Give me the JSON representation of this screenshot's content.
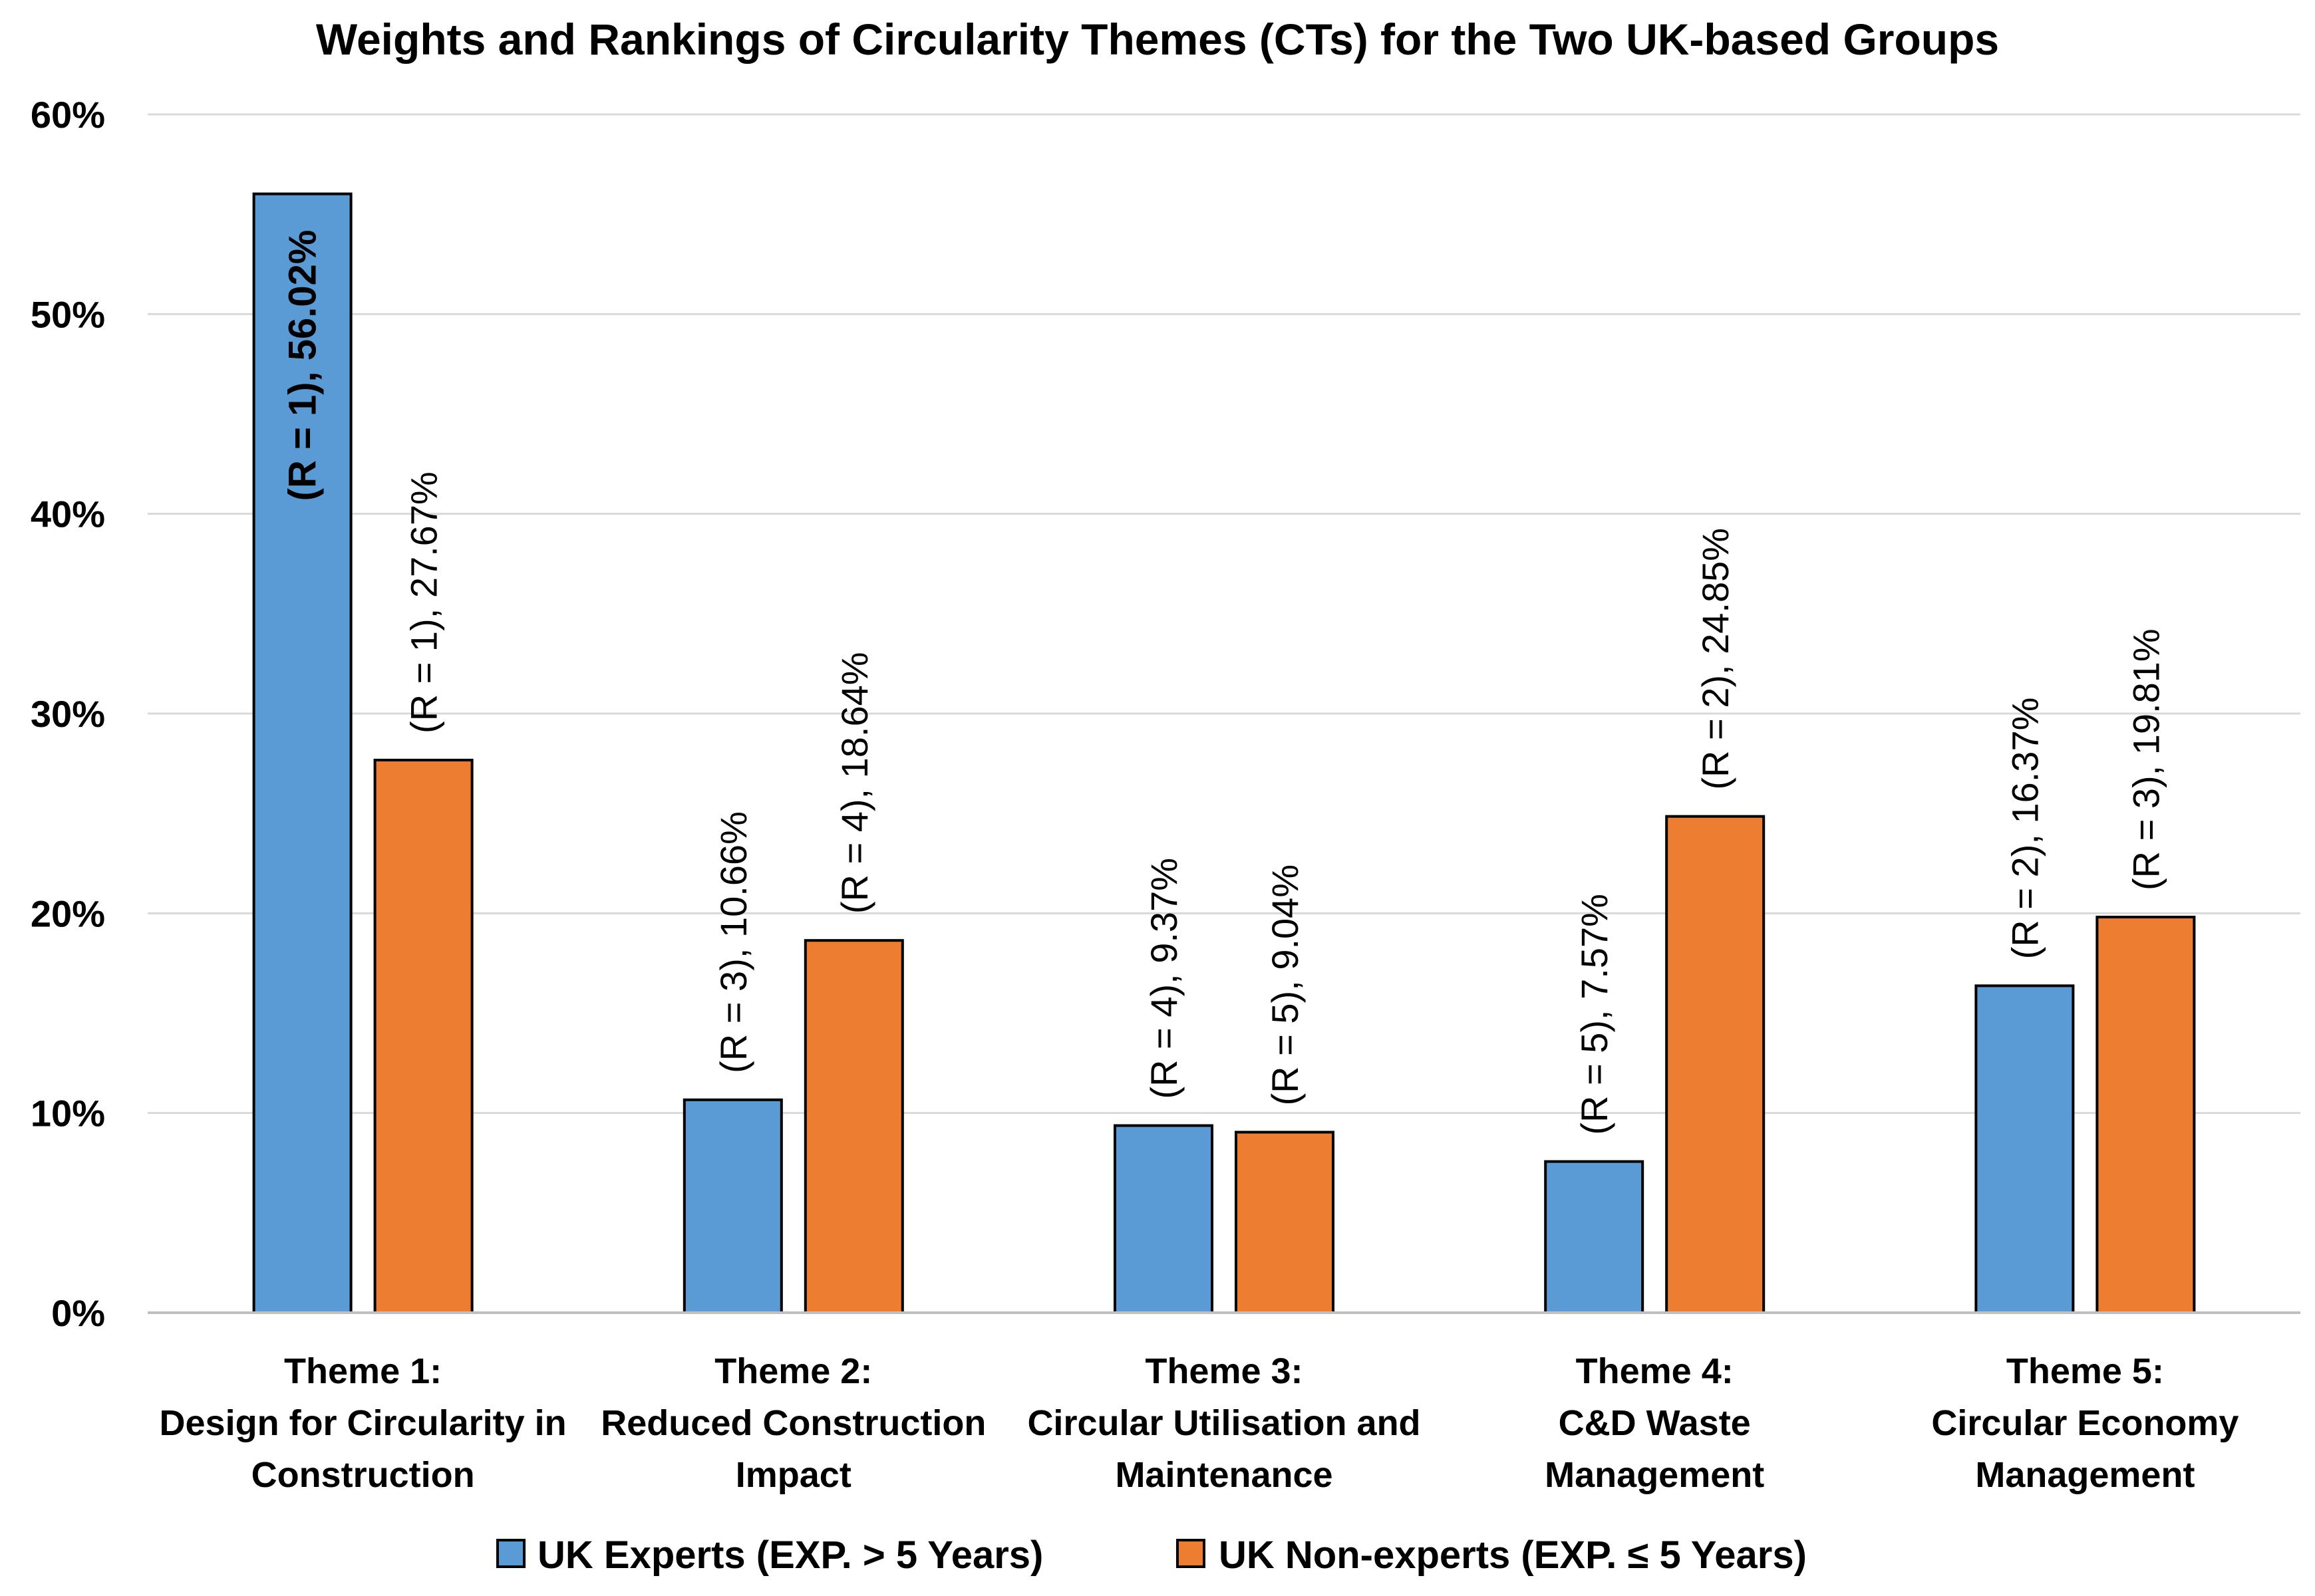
{
  "chart_data": {
    "type": "bar",
    "title": "Weights and Rankings of Circularity Themes (CTs) for the Two UK-based Groups",
    "xlabel": "",
    "ylabel": "",
    "ylim": [
      0,
      60
    ],
    "yticks": [
      "0%",
      "10%",
      "20%",
      "30%",
      "40%",
      "50%",
      "60%"
    ],
    "grid": true,
    "legend_position": "bottom",
    "categories": [
      [
        "Theme 1:",
        "Design for Circularity in",
        "Construction"
      ],
      [
        "Theme 2:",
        "Reduced Construction",
        "Impact"
      ],
      [
        "Theme 3:",
        "Circular Utilisation and",
        "Maintenance"
      ],
      [
        "Theme 4:",
        "C&D Waste",
        "Management"
      ],
      [
        "Theme 5:",
        "Circular Economy",
        "Management"
      ]
    ],
    "series": [
      {
        "name": "UK Experts (EXP. > 5 Years)",
        "color": "#5B9BD5",
        "values": [
          56.02,
          10.66,
          9.37,
          7.57,
          16.37
        ],
        "labels": [
          "(R = 1), 56.02%",
          "(R = 3), 10.66%",
          "(R = 4), 9.37%",
          "(R = 5), 7.57%",
          "(R = 2), 16.37%"
        ]
      },
      {
        "name": "UK Non-experts (EXP. ≤ 5 Years)",
        "color": "#ED7D31",
        "values": [
          27.67,
          18.64,
          9.04,
          24.85,
          19.81
        ],
        "labels": [
          "(R = 1), 27.67%",
          "(R = 4), 18.64%",
          "(R = 5), 9.04%",
          "(R = 2), 24.85%",
          "(R = 3), 19.81%"
        ]
      }
    ]
  }
}
